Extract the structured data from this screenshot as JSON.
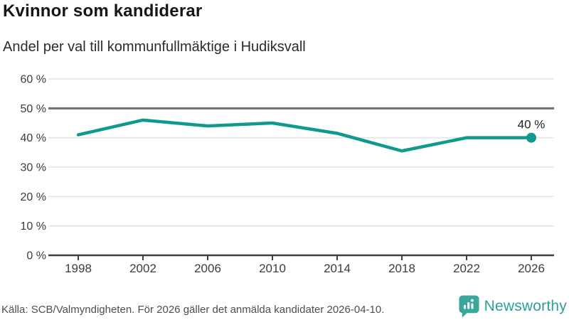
{
  "header": {
    "title": "Kvinnor som kandiderar",
    "subtitle": "Andel per val till kommunfullmäktige i Hudiksvall"
  },
  "chart_data": {
    "type": "line",
    "title": "Kvinnor som kandiderar",
    "subtitle": "Andel per val till kommunfullmäktige i Hudiksvall",
    "x": [
      1998,
      2002,
      2006,
      2010,
      2014,
      2018,
      2022,
      2026
    ],
    "xtick_labels": [
      "1998",
      "2002",
      "2006",
      "2010",
      "2014",
      "2018",
      "2022",
      "2026"
    ],
    "values": [
      41,
      46,
      44,
      45,
      41.5,
      35.5,
      40,
      40
    ],
    "ylim": [
      0,
      60
    ],
    "yticks": [
      0,
      10,
      20,
      30,
      40,
      50,
      60
    ],
    "ytick_labels": [
      "0 %",
      "10 %",
      "20 %",
      "30 %",
      "40 %",
      "50 %",
      "60 %"
    ],
    "reference_line_y": 50,
    "grid": true,
    "legend_position": "none",
    "end_point_label": "40 %",
    "end_point_marker": "filled-circle"
  },
  "footer": {
    "source": "Källa: SCB/Valmyndigheten. För 2026 gäller det anmälda kandidater 2026-04-10.",
    "brand": "Newsworthy"
  },
  "colors": {
    "accent": "#109a8d",
    "grid": "#e3e3e3",
    "reference": "#6f6f6f",
    "axis": "#3f3f3f",
    "tick_label": "#3c3c3c",
    "point_label": "#1f1f1f",
    "title": "#161616",
    "subtitle": "#2b2b2b",
    "source": "#4e4e4e",
    "logo_icon": "#3aa79b",
    "logo_text": "#2d9f94"
  }
}
